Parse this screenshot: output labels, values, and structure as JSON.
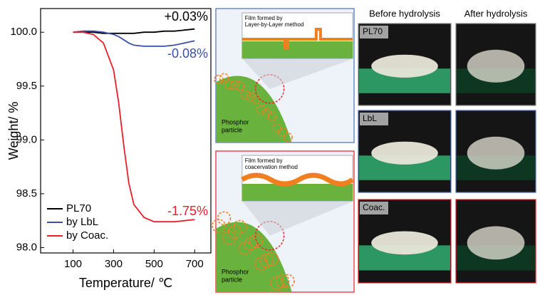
{
  "chart_data": {
    "type": "line",
    "xlabel": "Temperature/ ℃",
    "ylabel": "Weight/ %",
    "x": [
      100,
      150,
      200,
      250,
      300,
      325,
      350,
      375,
      400,
      450,
      500,
      550,
      600,
      650,
      700
    ],
    "series": [
      {
        "name": "PL70",
        "color": "#000000",
        "values": [
          100,
          100,
          100,
          99.99,
          99.99,
          99.99,
          99.99,
          99.99,
          99.99,
          100,
          100,
          100.01,
          100.01,
          100.02,
          100.03
        ]
      },
      {
        "name": "by LbL",
        "color": "#3b4fa8",
        "values": [
          100,
          100.01,
          100.01,
          100.0,
          99.98,
          99.96,
          99.93,
          99.9,
          99.88,
          99.87,
          99.87,
          99.87,
          99.88,
          99.9,
          99.92
        ]
      },
      {
        "name": "by Coac.",
        "color": "#e8202a",
        "values": [
          100,
          100,
          99.98,
          99.9,
          99.65,
          99.35,
          98.95,
          98.6,
          98.4,
          98.28,
          98.24,
          98.24,
          98.24,
          98.25,
          98.26
        ]
      }
    ],
    "annotations": [
      {
        "text": "+0.03%",
        "color": "#000000"
      },
      {
        "text": "-0.08%",
        "color": "#3b4fa8"
      },
      {
        "text": "-1.75%",
        "color": "#e8202a"
      }
    ],
    "xlim": [
      -60,
      780
    ],
    "xticks": [
      100,
      300,
      500,
      700
    ],
    "ylim": [
      97.95,
      100.22
    ],
    "yticks": [
      {
        "value": 98,
        "label": "98.0"
      },
      98.5,
      {
        "value": 99,
        "label": "99.0"
      },
      99.5,
      {
        "value": 100,
        "label": "100.0"
      }
    ],
    "legend": "lower-left"
  },
  "diagrams": [
    {
      "inset_label": [
        "Film formed by",
        "Layer-by-Layer method"
      ],
      "particle_label": [
        "Phosphor",
        "particle"
      ],
      "color": "#4a6fb5"
    },
    {
      "inset_label": [
        "Film formed by",
        "coacervation method"
      ],
      "particle_label": [
        "Phosphor",
        "particle"
      ],
      "color": "#e8202a"
    }
  ],
  "photos": {
    "columns": [
      "Before hydrolysis",
      "After hydrolysis"
    ],
    "rows": [
      {
        "label": "PL70",
        "color": "#888888"
      },
      {
        "label": "LbL",
        "color": "#4a6fb5"
      },
      {
        "label": "Coac.",
        "color": "#e8202a"
      }
    ]
  }
}
